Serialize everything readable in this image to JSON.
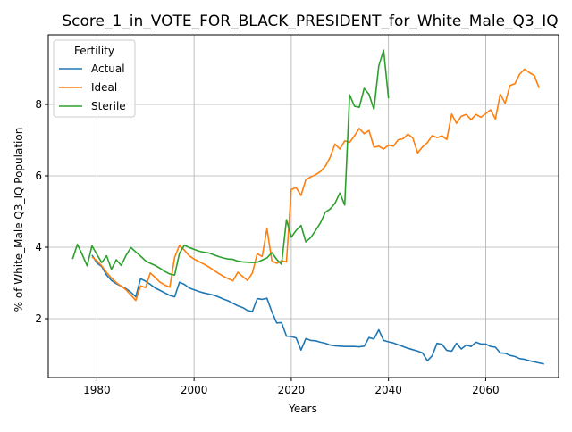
{
  "chart_data": {
    "type": "line",
    "title": "Score_1_in_VOTE_FOR_BLACK_PRESIDENT_for_White_Male_Q3_IQ",
    "xlabel": "Years",
    "ylabel": "% of White_Male Q3_IQ Population",
    "xlim": [
      1970,
      2075
    ],
    "ylim": [
      0.35,
      9.95
    ],
    "x_ticks": [
      1980,
      2000,
      2020,
      2040,
      2060
    ],
    "y_ticks": [
      2,
      4,
      6,
      8
    ],
    "grid": true,
    "legend": {
      "title": "Fertility",
      "placement": "upper-left"
    },
    "series": [
      {
        "name": "Actual",
        "color": "#1f77b4",
        "points": [
          [
            1979,
            3.78
          ],
          [
            1980,
            3.56
          ],
          [
            1981,
            3.46
          ],
          [
            1982,
            3.22
          ],
          [
            1983,
            3.07
          ],
          [
            1984,
            2.98
          ],
          [
            1985,
            2.91
          ],
          [
            1986,
            2.84
          ],
          [
            1987,
            2.74
          ],
          [
            1988,
            2.61
          ],
          [
            1989,
            3.12
          ],
          [
            1990,
            3.05
          ],
          [
            1991,
            2.96
          ],
          [
            1992,
            2.86
          ],
          [
            1993,
            2.79
          ],
          [
            1994,
            2.72
          ],
          [
            1995,
            2.65
          ],
          [
            1996,
            2.61
          ],
          [
            1997,
            3.02
          ],
          [
            1998,
            2.96
          ],
          [
            1999,
            2.86
          ],
          [
            2000,
            2.81
          ],
          [
            2001,
            2.76
          ],
          [
            2002,
            2.72
          ],
          [
            2003,
            2.69
          ],
          [
            2004,
            2.66
          ],
          [
            2005,
            2.61
          ],
          [
            2006,
            2.55
          ],
          [
            2007,
            2.5
          ],
          [
            2008,
            2.43
          ],
          [
            2009,
            2.36
          ],
          [
            2010,
            2.31
          ],
          [
            2011,
            2.23
          ],
          [
            2012,
            2.2
          ],
          [
            2013,
            2.56
          ],
          [
            2014,
            2.54
          ],
          [
            2015,
            2.57
          ],
          [
            2016,
            2.19
          ],
          [
            2017,
            1.88
          ],
          [
            2018,
            1.89
          ],
          [
            2019,
            1.51
          ],
          [
            2020,
            1.5
          ],
          [
            2021,
            1.46
          ],
          [
            2022,
            1.12
          ],
          [
            2023,
            1.44
          ],
          [
            2024,
            1.39
          ],
          [
            2025,
            1.38
          ],
          [
            2026,
            1.34
          ],
          [
            2027,
            1.31
          ],
          [
            2028,
            1.26
          ],
          [
            2029,
            1.24
          ],
          [
            2030,
            1.23
          ],
          [
            2031,
            1.22
          ],
          [
            2032,
            1.22
          ],
          [
            2033,
            1.22
          ],
          [
            2034,
            1.21
          ],
          [
            2035,
            1.23
          ],
          [
            2036,
            1.47
          ],
          [
            2037,
            1.43
          ],
          [
            2038,
            1.69
          ],
          [
            2039,
            1.39
          ],
          [
            2040,
            1.35
          ],
          [
            2041,
            1.32
          ],
          [
            2042,
            1.27
          ],
          [
            2043,
            1.22
          ],
          [
            2044,
            1.17
          ],
          [
            2045,
            1.13
          ],
          [
            2046,
            1.09
          ],
          [
            2047,
            1.04
          ],
          [
            2048,
            0.82
          ],
          [
            2049,
            0.96
          ],
          [
            2050,
            1.31
          ],
          [
            2051,
            1.28
          ],
          [
            2052,
            1.11
          ],
          [
            2053,
            1.09
          ],
          [
            2054,
            1.31
          ],
          [
            2055,
            1.15
          ],
          [
            2056,
            1.26
          ],
          [
            2057,
            1.22
          ],
          [
            2058,
            1.34
          ],
          [
            2059,
            1.29
          ],
          [
            2060,
            1.29
          ],
          [
            2061,
            1.22
          ],
          [
            2062,
            1.2
          ],
          [
            2063,
            1.04
          ],
          [
            2064,
            1.03
          ],
          [
            2065,
            0.97
          ],
          [
            2066,
            0.94
          ],
          [
            2067,
            0.88
          ],
          [
            2068,
            0.86
          ],
          [
            2069,
            0.82
          ],
          [
            2070,
            0.79
          ],
          [
            2071,
            0.76
          ],
          [
            2072,
            0.73
          ]
        ]
      },
      {
        "name": "Ideal",
        "color": "#ff7f0e",
        "points": [
          [
            1979,
            3.73
          ],
          [
            1980,
            3.62
          ],
          [
            1981,
            3.48
          ],
          [
            1982,
            3.29
          ],
          [
            1983,
            3.14
          ],
          [
            1984,
            3.01
          ],
          [
            1985,
            2.91
          ],
          [
            1986,
            2.81
          ],
          [
            1987,
            2.66
          ],
          [
            1988,
            2.51
          ],
          [
            1989,
            2.92
          ],
          [
            1990,
            2.87
          ],
          [
            1991,
            3.28
          ],
          [
            1992,
            3.15
          ],
          [
            1993,
            3.02
          ],
          [
            1994,
            2.94
          ],
          [
            1995,
            2.88
          ],
          [
            1996,
            3.72
          ],
          [
            1997,
            4.05
          ],
          [
            1998,
            3.92
          ],
          [
            1999,
            3.76
          ],
          [
            2000,
            3.67
          ],
          [
            2001,
            3.6
          ],
          [
            2002,
            3.53
          ],
          [
            2003,
            3.45
          ],
          [
            2004,
            3.36
          ],
          [
            2005,
            3.27
          ],
          [
            2006,
            3.19
          ],
          [
            2007,
            3.12
          ],
          [
            2008,
            3.06
          ],
          [
            2009,
            3.3
          ],
          [
            2010,
            3.18
          ],
          [
            2011,
            3.07
          ],
          [
            2012,
            3.28
          ],
          [
            2013,
            3.82
          ],
          [
            2014,
            3.74
          ],
          [
            2015,
            4.52
          ],
          [
            2016,
            3.62
          ],
          [
            2017,
            3.55
          ],
          [
            2018,
            3.62
          ],
          [
            2019,
            3.59
          ],
          [
            2020,
            5.62
          ],
          [
            2021,
            5.67
          ],
          [
            2022,
            5.45
          ],
          [
            2023,
            5.89
          ],
          [
            2024,
            5.97
          ],
          [
            2025,
            6.03
          ],
          [
            2026,
            6.12
          ],
          [
            2027,
            6.27
          ],
          [
            2028,
            6.52
          ],
          [
            2029,
            6.89
          ],
          [
            2030,
            6.75
          ],
          [
            2031,
            6.98
          ],
          [
            2032,
            6.94
          ],
          [
            2033,
            7.12
          ],
          [
            2034,
            7.33
          ],
          [
            2035,
            7.18
          ],
          [
            2036,
            7.27
          ],
          [
            2037,
            6.8
          ],
          [
            2038,
            6.83
          ],
          [
            2039,
            6.75
          ],
          [
            2040,
            6.86
          ],
          [
            2041,
            6.83
          ],
          [
            2042,
            7.01
          ],
          [
            2043,
            7.04
          ],
          [
            2044,
            7.17
          ],
          [
            2045,
            7.06
          ],
          [
            2046,
            6.64
          ],
          [
            2047,
            6.81
          ],
          [
            2048,
            6.93
          ],
          [
            2049,
            7.13
          ],
          [
            2050,
            7.07
          ],
          [
            2051,
            7.12
          ],
          [
            2052,
            7.02
          ],
          [
            2053,
            7.73
          ],
          [
            2054,
            7.47
          ],
          [
            2055,
            7.67
          ],
          [
            2056,
            7.72
          ],
          [
            2057,
            7.57
          ],
          [
            2058,
            7.72
          ],
          [
            2059,
            7.64
          ],
          [
            2060,
            7.74
          ],
          [
            2061,
            7.85
          ],
          [
            2062,
            7.59
          ],
          [
            2063,
            8.29
          ],
          [
            2064,
            8.03
          ],
          [
            2065,
            8.53
          ],
          [
            2066,
            8.58
          ],
          [
            2067,
            8.85
          ],
          [
            2068,
            8.99
          ],
          [
            2069,
            8.89
          ],
          [
            2070,
            8.81
          ],
          [
            2071,
            8.46
          ]
        ]
      },
      {
        "name": "Sterile",
        "color": "#2ca02c",
        "points": [
          [
            1975,
            3.67
          ],
          [
            1976,
            4.08
          ],
          [
            1977,
            3.79
          ],
          [
            1978,
            3.48
          ],
          [
            1979,
            4.04
          ],
          [
            1980,
            3.8
          ],
          [
            1981,
            3.57
          ],
          [
            1982,
            3.76
          ],
          [
            1983,
            3.38
          ],
          [
            1984,
            3.65
          ],
          [
            1985,
            3.49
          ],
          [
            1986,
            3.77
          ],
          [
            1987,
            3.99
          ],
          [
            1988,
            3.87
          ],
          [
            1989,
            3.75
          ],
          [
            1990,
            3.62
          ],
          [
            1991,
            3.55
          ],
          [
            1992,
            3.49
          ],
          [
            1993,
            3.41
          ],
          [
            1994,
            3.32
          ],
          [
            1995,
            3.25
          ],
          [
            1996,
            3.22
          ],
          [
            1997,
            3.83
          ],
          [
            1998,
            4.06
          ],
          [
            1999,
            3.99
          ],
          [
            2000,
            3.94
          ],
          [
            2001,
            3.89
          ],
          [
            2002,
            3.86
          ],
          [
            2003,
            3.84
          ],
          [
            2004,
            3.79
          ],
          [
            2005,
            3.74
          ],
          [
            2006,
            3.7
          ],
          [
            2007,
            3.67
          ],
          [
            2008,
            3.66
          ],
          [
            2009,
            3.61
          ],
          [
            2010,
            3.59
          ],
          [
            2011,
            3.58
          ],
          [
            2012,
            3.57
          ],
          [
            2013,
            3.58
          ],
          [
            2014,
            3.64
          ],
          [
            2015,
            3.7
          ],
          [
            2016,
            3.85
          ],
          [
            2017,
            3.66
          ],
          [
            2018,
            3.52
          ],
          [
            2019,
            4.77
          ],
          [
            2020,
            4.28
          ],
          [
            2021,
            4.47
          ],
          [
            2022,
            4.61
          ],
          [
            2023,
            4.15
          ],
          [
            2024,
            4.27
          ],
          [
            2025,
            4.47
          ],
          [
            2026,
            4.68
          ],
          [
            2027,
            4.98
          ],
          [
            2028,
            5.07
          ],
          [
            2029,
            5.23
          ],
          [
            2030,
            5.52
          ],
          [
            2031,
            5.18
          ],
          [
            2032,
            8.27
          ],
          [
            2033,
            7.95
          ],
          [
            2034,
            7.92
          ],
          [
            2035,
            8.45
          ],
          [
            2036,
            8.28
          ],
          [
            2037,
            7.86
          ],
          [
            2038,
            9.08
          ],
          [
            2039,
            9.52
          ],
          [
            2040,
            8.17
          ]
        ]
      }
    ]
  }
}
